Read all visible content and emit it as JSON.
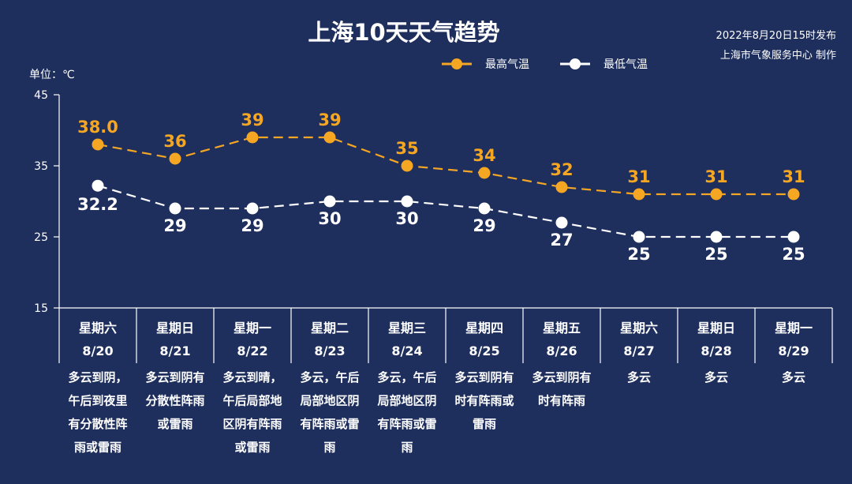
{
  "header": {
    "title": "上海10天天气趋势",
    "publish_time": "2022年8月20日15时发布",
    "publisher": "上海市气象服务中心 制作"
  },
  "chart_data": {
    "type": "line",
    "title": "上海10天天气趋势",
    "unit_label": "单位：℃",
    "ylim": [
      15,
      45
    ],
    "yticks": [
      45,
      35,
      25,
      15
    ],
    "grid": false,
    "legend_placement": "top-right",
    "colors": {
      "high": "#f5a623",
      "low": "#ffffff",
      "background": "#1e2f5e"
    },
    "categories": [
      {
        "weekday": "星期六",
        "date": "8/20",
        "weather": [
          "多云到阴，",
          "午后到夜里",
          "有分散性阵",
          "雨或雷雨"
        ]
      },
      {
        "weekday": "星期日",
        "date": "8/21",
        "weather": [
          "多云到阴有",
          "分散性阵雨",
          "或雷雨"
        ]
      },
      {
        "weekday": "星期一",
        "date": "8/22",
        "weather": [
          "多云到晴，",
          "午后局部地",
          "区阴有阵雨",
          "或雷雨"
        ]
      },
      {
        "weekday": "星期二",
        "date": "8/23",
        "weather": [
          "多云，午后",
          "局部地区阴",
          "有阵雨或雷",
          "雨"
        ]
      },
      {
        "weekday": "星期三",
        "date": "8/24",
        "weather": [
          "多云，午后",
          "局部地区阴",
          "有阵雨或雷",
          "雨"
        ]
      },
      {
        "weekday": "星期四",
        "date": "8/25",
        "weather": [
          "多云到阴有",
          "时有阵雨或",
          "雷雨"
        ]
      },
      {
        "weekday": "星期五",
        "date": "8/26",
        "weather": [
          "多云到阴有",
          "时有阵雨"
        ]
      },
      {
        "weekday": "星期六",
        "date": "8/27",
        "weather": [
          "多云"
        ]
      },
      {
        "weekday": "星期日",
        "date": "8/28",
        "weather": [
          "多云"
        ]
      },
      {
        "weekday": "星期一",
        "date": "8/29",
        "weather": [
          "多云"
        ]
      }
    ],
    "series": [
      {
        "name": "最高气温",
        "key": "high",
        "values": [
          38.0,
          36,
          39,
          39,
          35,
          34,
          32,
          31,
          31,
          31
        ],
        "labels": [
          "38.0",
          "36",
          "39",
          "39",
          "35",
          "34",
          "32",
          "31",
          "31",
          "31"
        ]
      },
      {
        "name": "最低气温",
        "key": "low",
        "values": [
          32.2,
          29,
          29,
          30,
          30,
          29,
          27,
          25,
          25,
          25
        ],
        "labels": [
          "32.2",
          "29",
          "29",
          "30",
          "30",
          "29",
          "27",
          "25",
          "25",
          "25"
        ]
      }
    ]
  }
}
